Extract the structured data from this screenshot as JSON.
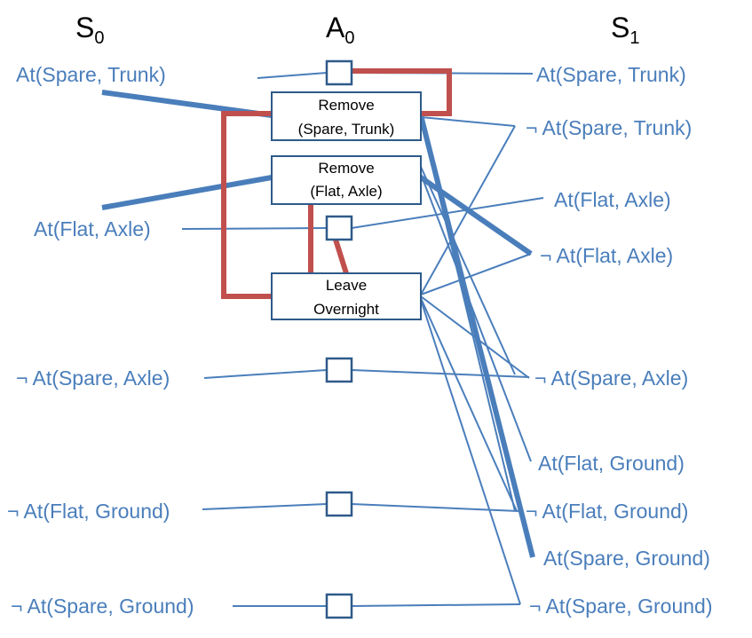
{
  "headers": {
    "s0": {
      "main": "S",
      "sub": "0"
    },
    "a0": {
      "main": "A",
      "sub": "0"
    },
    "s1": {
      "main": "S",
      "sub": "1"
    }
  },
  "s0_literals": [
    "At(Spare, Trunk)",
    "At(Flat, Axle)",
    "¬ At(Spare,  Axle)",
    "¬ At(Flat, Ground)",
    "¬ At(Spare,  Ground)"
  ],
  "s1_literals": [
    "At(Spare, Trunk)",
    "¬ At(Spare,  Trunk)",
    "At(Flat, Axle)",
    "¬ At(Flat, Axle)",
    "¬ At(Spare,  Axle)",
    "At(Flat, Ground)",
    "¬ At(Flat, Ground)",
    "At(Spare, Ground)",
    "¬ At(Spare,  Ground)"
  ],
  "actions": {
    "remove_spare_trunk": {
      "line1": "Remove",
      "line2": "(Spare, Trunk)"
    },
    "remove_flat_axle": {
      "line1": "Remove",
      "line2": "(Flat, Axle)"
    },
    "leave_overnight": {
      "line1": "Leave",
      "line2": "Overnight"
    }
  },
  "colors": {
    "literal": "#4a7ebb",
    "mutex": "#c0504d",
    "box_border": "#2e5a8a"
  }
}
